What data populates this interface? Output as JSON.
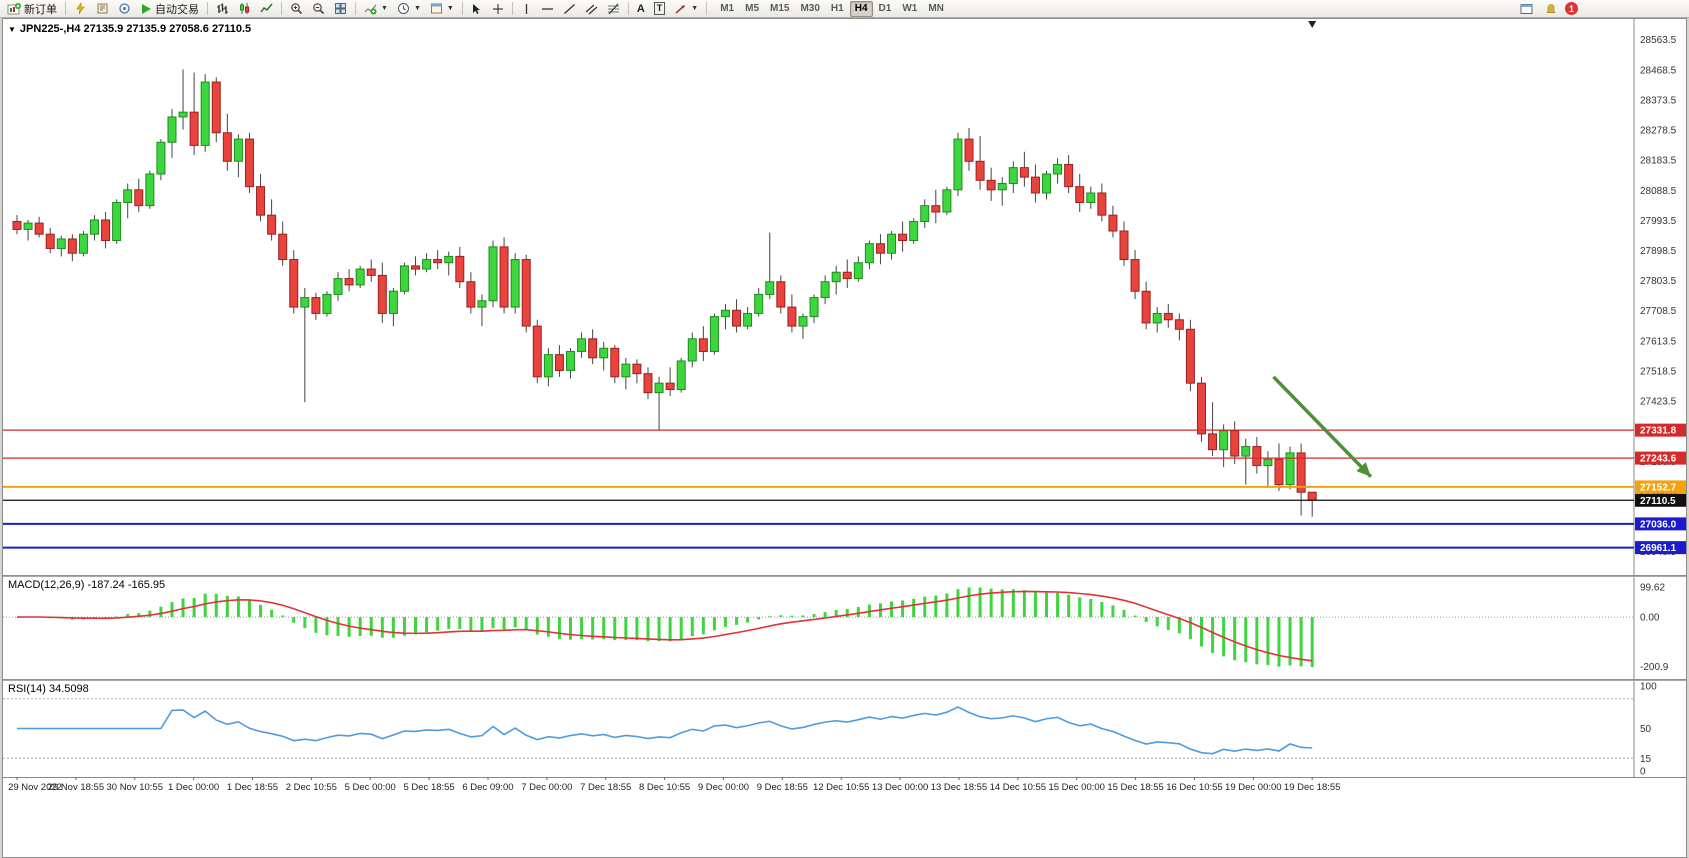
{
  "toolbar": {
    "new_order": "新订单",
    "autotrade": "自动交易",
    "text_tool": "A",
    "label_tool": "T",
    "timeframes": [
      "M1",
      "M5",
      "M15",
      "M30",
      "H1",
      "H4",
      "D1",
      "W1",
      "MN"
    ],
    "active_timeframe": "H4",
    "notification_count": "1"
  },
  "main_chart": {
    "title": "JPN225-,H4 27135.9 27135.9 27058.6 27110.5"
  },
  "macd": {
    "title": "MACD(12,26,9) -187.24 -165.95",
    "scale": {
      "top": "99.62",
      "zero": "0.00",
      "bottom": "-200.9"
    }
  },
  "rsi": {
    "title": "RSI(14) 34.5098",
    "scale_labels": [
      "100",
      "50",
      "15",
      "0"
    ],
    "levels": [
      85,
      15
    ]
  },
  "chart_data": {
    "type": "candlestick",
    "symbol": "JPN225-",
    "timeframe": "H4",
    "price_axis": {
      "min": 26900,
      "max": 28610,
      "tick_start": 26948.5,
      "tick_step": 95,
      "tick_count": 18
    },
    "candles": [
      [
        27990,
        28010,
        27950,
        27965
      ],
      [
        27965,
        27995,
        27930,
        27985
      ],
      [
        27985,
        28005,
        27940,
        27950
      ],
      [
        27950,
        27970,
        27890,
        27905
      ],
      [
        27905,
        27945,
        27880,
        27935
      ],
      [
        27935,
        27950,
        27865,
        27890
      ],
      [
        27890,
        27960,
        27880,
        27950
      ],
      [
        27950,
        28010,
        27930,
        27995
      ],
      [
        27995,
        28020,
        27905,
        27930
      ],
      [
        27930,
        28060,
        27920,
        28050
      ],
      [
        28050,
        28110,
        28000,
        28090
      ],
      [
        28090,
        28125,
        28020,
        28040
      ],
      [
        28040,
        28150,
        28030,
        28140
      ],
      [
        28140,
        28250,
        28120,
        28240
      ],
      [
        28240,
        28345,
        28190,
        28320
      ],
      [
        28320,
        28470,
        28280,
        28335
      ],
      [
        28335,
        28460,
        28200,
        28230
      ],
      [
        28230,
        28455,
        28210,
        28430
      ],
      [
        28430,
        28445,
        28240,
        28270
      ],
      [
        28270,
        28330,
        28150,
        28180
      ],
      [
        28180,
        28265,
        28130,
        28250
      ],
      [
        28250,
        28270,
        28080,
        28100
      ],
      [
        28100,
        28140,
        27990,
        28010
      ],
      [
        28010,
        28060,
        27930,
        27950
      ],
      [
        27950,
        27990,
        27850,
        27870
      ],
      [
        27870,
        27900,
        27700,
        27720
      ],
      [
        27720,
        27780,
        27420,
        27750
      ],
      [
        27750,
        27765,
        27680,
        27700
      ],
      [
        27700,
        27770,
        27690,
        27760
      ],
      [
        27760,
        27830,
        27740,
        27810
      ],
      [
        27810,
        27840,
        27770,
        27790
      ],
      [
        27790,
        27850,
        27780,
        27840
      ],
      [
        27840,
        27870,
        27800,
        27820
      ],
      [
        27820,
        27860,
        27670,
        27700
      ],
      [
        27700,
        27780,
        27660,
        27770
      ],
      [
        27770,
        27860,
        27760,
        27850
      ],
      [
        27850,
        27880,
        27820,
        27840
      ],
      [
        27840,
        27890,
        27830,
        27870
      ],
      [
        27870,
        27900,
        27840,
        27860
      ],
      [
        27860,
        27895,
        27820,
        27880
      ],
      [
        27880,
        27910,
        27780,
        27800
      ],
      [
        27800,
        27830,
        27700,
        27720
      ],
      [
        27720,
        27760,
        27660,
        27740
      ],
      [
        27740,
        27930,
        27720,
        27910
      ],
      [
        27910,
        27940,
        27700,
        27720
      ],
      [
        27720,
        27890,
        27700,
        27870
      ],
      [
        27870,
        27885,
        27640,
        27660
      ],
      [
        27660,
        27680,
        27480,
        27500
      ],
      [
        27500,
        27590,
        27470,
        27570
      ],
      [
        27570,
        27600,
        27500,
        27520
      ],
      [
        27520,
        27590,
        27495,
        27580
      ],
      [
        27580,
        27640,
        27560,
        27620
      ],
      [
        27620,
        27650,
        27540,
        27560
      ],
      [
        27560,
        27610,
        27520,
        27590
      ],
      [
        27590,
        27600,
        27480,
        27500
      ],
      [
        27500,
        27560,
        27460,
        27540
      ],
      [
        27540,
        27555,
        27480,
        27510
      ],
      [
        27510,
        27530,
        27430,
        27450
      ],
      [
        27450,
        27500,
        27330,
        27480
      ],
      [
        27480,
        27530,
        27440,
        27460
      ],
      [
        27460,
        27560,
        27450,
        27550
      ],
      [
        27550,
        27640,
        27530,
        27620
      ],
      [
        27620,
        27660,
        27550,
        27580
      ],
      [
        27580,
        27700,
        27570,
        27690
      ],
      [
        27690,
        27730,
        27650,
        27710
      ],
      [
        27710,
        27745,
        27640,
        27660
      ],
      [
        27660,
        27720,
        27650,
        27700
      ],
      [
        27700,
        27780,
        27690,
        27760
      ],
      [
        27760,
        27955,
        27745,
        27800
      ],
      [
        27800,
        27820,
        27700,
        27720
      ],
      [
        27720,
        27760,
        27640,
        27660
      ],
      [
        27660,
        27700,
        27620,
        27690
      ],
      [
        27690,
        27760,
        27670,
        27750
      ],
      [
        27750,
        27820,
        27730,
        27800
      ],
      [
        27800,
        27850,
        27760,
        27830
      ],
      [
        27830,
        27870,
        27780,
        27810
      ],
      [
        27810,
        27880,
        27800,
        27860
      ],
      [
        27860,
        27930,
        27840,
        27920
      ],
      [
        27920,
        27950,
        27855,
        27890
      ],
      [
        27890,
        27960,
        27870,
        27950
      ],
      [
        27950,
        27990,
        27895,
        27930
      ],
      [
        27930,
        28000,
        27920,
        27990
      ],
      [
        27990,
        28060,
        27970,
        28040
      ],
      [
        28040,
        28090,
        27985,
        28020
      ],
      [
        28020,
        28100,
        28010,
        28090
      ],
      [
        28090,
        28270,
        28070,
        28250
      ],
      [
        28250,
        28285,
        28150,
        28180
      ],
      [
        28180,
        28260,
        28090,
        28120
      ],
      [
        28120,
        28160,
        28055,
        28090
      ],
      [
        28090,
        28130,
        28040,
        28110
      ],
      [
        28110,
        28180,
        28080,
        28160
      ],
      [
        28160,
        28210,
        28100,
        28130
      ],
      [
        28130,
        28170,
        28050,
        28080
      ],
      [
        28080,
        28150,
        28060,
        28140
      ],
      [
        28140,
        28190,
        28110,
        28170
      ],
      [
        28170,
        28200,
        28080,
        28100
      ],
      [
        28100,
        28140,
        28020,
        28050
      ],
      [
        28050,
        28100,
        28030,
        28080
      ],
      [
        28080,
        28110,
        27990,
        28010
      ],
      [
        28010,
        28040,
        27940,
        27960
      ],
      [
        27960,
        27990,
        27850,
        27870
      ],
      [
        27870,
        27900,
        27745,
        27770
      ],
      [
        27770,
        27800,
        27650,
        27670
      ],
      [
        27670,
        27720,
        27640,
        27700
      ],
      [
        27700,
        27730,
        27655,
        27680
      ],
      [
        27680,
        27700,
        27615,
        27650
      ],
      [
        27650,
        27680,
        27455,
        27480
      ],
      [
        27480,
        27500,
        27295,
        27320
      ],
      [
        27320,
        27420,
        27250,
        27270
      ],
      [
        27270,
        27350,
        27215,
        27330
      ],
      [
        27330,
        27360,
        27225,
        27250
      ],
      [
        27250,
        27305,
        27160,
        27280
      ],
      [
        27280,
        27310,
        27195,
        27220
      ],
      [
        27220,
        27265,
        27150,
        27240
      ],
      [
        27240,
        27290,
        27140,
        27160
      ],
      [
        27160,
        27280,
        27145,
        27260
      ],
      [
        27260,
        27290,
        27062,
        27136
      ],
      [
        27135.9,
        27135.9,
        27058.6,
        27110.5
      ]
    ],
    "price_lines": [
      {
        "value": 27331.8,
        "label": "27331.8",
        "color": "#d42a2a",
        "width": 1.2
      },
      {
        "value": 27243.6,
        "label": "27243.6",
        "color": "#d42a2a",
        "width": 1.2
      },
      {
        "value": 27152.7,
        "label": "27152.7",
        "color": "#f2a30f",
        "width": 2
      },
      {
        "value": 27110.5,
        "label": "27110.5",
        "color": "#111111",
        "width": 1.2,
        "current": true
      },
      {
        "value": 27036.0,
        "label": "27036.0",
        "color": "#1c1ccc",
        "width": 2
      },
      {
        "value": 26961.1,
        "label": "26961.1",
        "color": "#1c1ccc",
        "width": 2
      }
    ],
    "arrow": {
      "from_index": 113.5,
      "from_price": 27500,
      "to_index": 122.3,
      "to_price": 27185,
      "color": "#4e8f3a"
    },
    "time_labels": [
      "29 Nov 2022",
      "29 Nov 18:55",
      "30 Nov 10:55",
      "1 Dec 00:00",
      "1 Dec 18:55",
      "2 Dec 10:55",
      "5 Dec 00:00",
      "5 Dec 18:55",
      "6 Dec 09:00",
      "7 Dec 00:00",
      "7 Dec 18:55",
      "8 Dec 10:55",
      "9 Dec 00:00",
      "9 Dec 18:55",
      "12 Dec 10:55",
      "13 Dec 00:00",
      "13 Dec 18:55",
      "14 Dec 10:55",
      "15 Dec 00:00",
      "15 Dec 18:55",
      "16 Dec 10:55",
      "19 Dec 00:00",
      "19 Dec 18:55"
    ],
    "macd_params": [
      12,
      26,
      9
    ],
    "rsi_period": 14,
    "colors": {
      "up": "#3ed63e",
      "down": "#e8433c",
      "up_border": "#1e8c1e",
      "down_border": "#992222",
      "wick": "#444444",
      "macd_hist": "#3ed63e",
      "macd_signal": "#e03434",
      "rsi_line": "#4f9be0"
    }
  }
}
